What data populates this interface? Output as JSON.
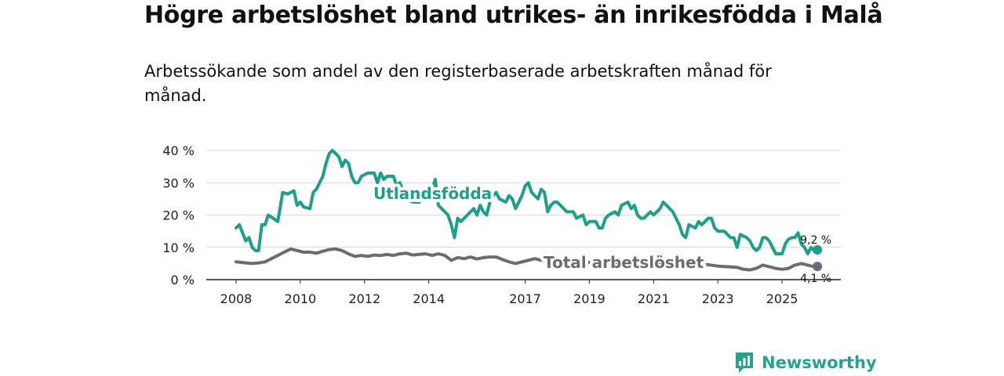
{
  "page": {
    "title": "Högre arbetslöshet bland utrikes- än inrikesfödda i Malå",
    "subtitle": "Arbetssökande som andel av den registerbaserade arbetskraften månad för månad."
  },
  "brand": {
    "name": "Newsworthy",
    "icon": "newsworthy-logo-icon",
    "color": "#2aa08e"
  },
  "chart_data": {
    "type": "line",
    "title": "Högre arbetslöshet bland utrikes- än inrikesfödda i Malå",
    "subtitle": "Arbetssökande som andel av den registerbaserade arbetskraften månad för månad.",
    "xlabel": "",
    "ylabel": "",
    "xlim": [
      2008.0,
      2026.0
    ],
    "ylim": [
      0,
      40
    ],
    "x_ticks": [
      {
        "value": 2008,
        "label": "2008"
      },
      {
        "value": 2010,
        "label": "2010"
      },
      {
        "value": 2012,
        "label": "2012"
      },
      {
        "value": 2014,
        "label": "2014"
      },
      {
        "value": 2017,
        "label": "2017"
      },
      {
        "value": 2019,
        "label": "2019"
      },
      {
        "value": 2021,
        "label": "2021"
      },
      {
        "value": 2023,
        "label": "2023"
      },
      {
        "value": 2025,
        "label": "2025"
      }
    ],
    "y_ticks": [
      {
        "value": 0,
        "label": "0 %"
      },
      {
        "value": 10,
        "label": "10 %"
      },
      {
        "value": 20,
        "label": "20 %"
      },
      {
        "value": 30,
        "label": "30 %"
      },
      {
        "value": 40,
        "label": "40 %"
      }
    ],
    "grid": true,
    "series": [
      {
        "name": "Utlandsfödda",
        "color": "#1f9e8a",
        "end_label": "9,2 %",
        "points": [
          [
            2008.0,
            16
          ],
          [
            2008.1,
            17
          ],
          [
            2008.3,
            12
          ],
          [
            2008.4,
            13
          ],
          [
            2008.5,
            10
          ],
          [
            2008.6,
            9
          ],
          [
            2008.7,
            9
          ],
          [
            2008.8,
            17
          ],
          [
            2008.9,
            17
          ],
          [
            2009.0,
            20
          ],
          [
            2009.15,
            19
          ],
          [
            2009.3,
            18
          ],
          [
            2009.45,
            27
          ],
          [
            2009.6,
            26.5
          ],
          [
            2009.8,
            27.5
          ],
          [
            2009.9,
            23
          ],
          [
            2010.0,
            24
          ],
          [
            2010.1,
            22.5
          ],
          [
            2010.3,
            22
          ],
          [
            2010.4,
            27
          ],
          [
            2010.5,
            28
          ],
          [
            2010.7,
            32
          ],
          [
            2010.8,
            36
          ],
          [
            2010.9,
            39
          ],
          [
            2011.0,
            40
          ],
          [
            2011.1,
            39
          ],
          [
            2011.2,
            38
          ],
          [
            2011.3,
            35
          ],
          [
            2011.4,
            37
          ],
          [
            2011.5,
            36
          ],
          [
            2011.6,
            32
          ],
          [
            2011.7,
            30
          ],
          [
            2011.8,
            30
          ],
          [
            2011.9,
            32
          ],
          [
            2012.1,
            33
          ],
          [
            2012.3,
            33
          ],
          [
            2012.4,
            30
          ],
          [
            2012.5,
            33
          ],
          [
            2012.6,
            31
          ],
          [
            2012.7,
            32
          ],
          [
            2012.9,
            32
          ],
          [
            2013.0,
            29
          ],
          [
            2013.1,
            30
          ],
          [
            2013.3,
            25
          ],
          [
            2013.5,
            24
          ],
          [
            2013.7,
            24
          ],
          [
            2013.9,
            27
          ],
          [
            2014.1,
            28
          ],
          [
            2014.2,
            31
          ],
          [
            2014.3,
            23
          ],
          [
            2014.5,
            21
          ],
          [
            2014.6,
            20
          ],
          [
            2014.7,
            17
          ],
          [
            2014.8,
            13
          ],
          [
            2014.9,
            19
          ],
          [
            2015.0,
            18
          ],
          [
            2015.2,
            20
          ],
          [
            2015.3,
            21
          ],
          [
            2015.4,
            22
          ],
          [
            2015.5,
            20
          ],
          [
            2015.6,
            23
          ],
          [
            2015.7,
            21
          ],
          [
            2015.8,
            20
          ],
          [
            2015.9,
            24
          ],
          [
            2016.0,
            26
          ],
          [
            2016.1,
            27
          ],
          [
            2016.2,
            25
          ],
          [
            2016.4,
            24
          ],
          [
            2016.5,
            26
          ],
          [
            2016.6,
            25
          ],
          [
            2016.7,
            22
          ],
          [
            2016.9,
            26
          ],
          [
            2017.0,
            29
          ],
          [
            2017.1,
            30
          ],
          [
            2017.2,
            27
          ],
          [
            2017.4,
            25
          ],
          [
            2017.5,
            28
          ],
          [
            2017.6,
            27
          ],
          [
            2017.7,
            21
          ],
          [
            2017.8,
            23
          ],
          [
            2017.9,
            24
          ],
          [
            2018.0,
            24
          ],
          [
            2018.1,
            23
          ],
          [
            2018.2,
            22
          ],
          [
            2018.3,
            21
          ],
          [
            2018.5,
            21
          ],
          [
            2018.6,
            19
          ],
          [
            2018.8,
            20
          ],
          [
            2018.9,
            17
          ],
          [
            2019.0,
            18
          ],
          [
            2019.2,
            18
          ],
          [
            2019.3,
            16
          ],
          [
            2019.4,
            16
          ],
          [
            2019.5,
            19
          ],
          [
            2019.6,
            20
          ],
          [
            2019.8,
            21
          ],
          [
            2019.9,
            20
          ],
          [
            2020.0,
            23
          ],
          [
            2020.2,
            24
          ],
          [
            2020.3,
            22
          ],
          [
            2020.4,
            23
          ],
          [
            2020.5,
            20
          ],
          [
            2020.6,
            19
          ],
          [
            2020.7,
            19
          ],
          [
            2020.8,
            20
          ],
          [
            2020.9,
            21
          ],
          [
            2021.0,
            20
          ],
          [
            2021.2,
            22
          ],
          [
            2021.3,
            24
          ],
          [
            2021.4,
            23
          ],
          [
            2021.5,
            22
          ],
          [
            2021.6,
            21
          ],
          [
            2021.7,
            19
          ],
          [
            2021.8,
            17
          ],
          [
            2021.9,
            14
          ],
          [
            2022.0,
            13
          ],
          [
            2022.1,
            17
          ],
          [
            2022.3,
            16
          ],
          [
            2022.4,
            18
          ],
          [
            2022.5,
            17
          ],
          [
            2022.6,
            18
          ],
          [
            2022.7,
            19
          ],
          [
            2022.8,
            19
          ],
          [
            2022.9,
            16
          ],
          [
            2023.0,
            15
          ],
          [
            2023.2,
            15
          ],
          [
            2023.3,
            14
          ],
          [
            2023.4,
            13
          ],
          [
            2023.5,
            13
          ],
          [
            2023.6,
            10
          ],
          [
            2023.7,
            14
          ],
          [
            2023.9,
            13
          ],
          [
            2024.0,
            12
          ],
          [
            2024.1,
            10
          ],
          [
            2024.2,
            9
          ],
          [
            2024.3,
            10
          ],
          [
            2024.4,
            13
          ],
          [
            2024.5,
            13
          ],
          [
            2024.6,
            12
          ],
          [
            2024.7,
            10
          ],
          [
            2024.8,
            8
          ],
          [
            2024.9,
            8
          ],
          [
            2025.0,
            8
          ],
          [
            2025.1,
            11
          ],
          [
            2025.2,
            12.5
          ],
          [
            2025.3,
            13
          ],
          [
            2025.4,
            13
          ],
          [
            2025.5,
            14.5
          ],
          [
            2025.6,
            11
          ],
          [
            2025.7,
            10
          ],
          [
            2025.8,
            8
          ],
          [
            2025.9,
            10
          ],
          [
            2026.0,
            9
          ],
          [
            2026.1,
            9.2
          ]
        ]
      },
      {
        "name": "Total arbetslöshet",
        "color": "#6b6b73",
        "end_label": "4,1 %",
        "points": [
          [
            2008.0,
            5.5
          ],
          [
            2008.3,
            5.2
          ],
          [
            2008.5,
            5
          ],
          [
            2008.7,
            5.2
          ],
          [
            2008.9,
            5.5
          ],
          [
            2009.1,
            6.5
          ],
          [
            2009.3,
            7.5
          ],
          [
            2009.5,
            8.5
          ],
          [
            2009.7,
            9.5
          ],
          [
            2009.9,
            9.0
          ],
          [
            2010.1,
            8.5
          ],
          [
            2010.3,
            8.5
          ],
          [
            2010.5,
            8.2
          ],
          [
            2010.7,
            8.8
          ],
          [
            2010.9,
            9.3
          ],
          [
            2011.1,
            9.5
          ],
          [
            2011.3,
            9.0
          ],
          [
            2011.5,
            8.0
          ],
          [
            2011.7,
            7.2
          ],
          [
            2011.9,
            7.5
          ],
          [
            2012.1,
            7.2
          ],
          [
            2012.3,
            7.6
          ],
          [
            2012.5,
            7.5
          ],
          [
            2012.7,
            7.8
          ],
          [
            2012.9,
            7.5
          ],
          [
            2013.1,
            8.0
          ],
          [
            2013.3,
            8.2
          ],
          [
            2013.5,
            7.6
          ],
          [
            2013.7,
            7.8
          ],
          [
            2013.9,
            8.0
          ],
          [
            2014.1,
            7.5
          ],
          [
            2014.3,
            8.0
          ],
          [
            2014.5,
            7.5
          ],
          [
            2014.7,
            6.0
          ],
          [
            2014.9,
            6.8
          ],
          [
            2015.1,
            6.5
          ],
          [
            2015.3,
            7.0
          ],
          [
            2015.5,
            6.4
          ],
          [
            2015.7,
            6.8
          ],
          [
            2015.9,
            7.0
          ],
          [
            2016.1,
            7.0
          ],
          [
            2016.3,
            6.2
          ],
          [
            2016.5,
            5.5
          ],
          [
            2016.7,
            5.0
          ],
          [
            2016.9,
            5.5
          ],
          [
            2017.1,
            6.0
          ],
          [
            2017.3,
            6.5
          ],
          [
            2017.5,
            6.0
          ],
          [
            2017.7,
            6.2
          ],
          [
            2017.9,
            6.0
          ],
          [
            2018.2,
            5.8
          ],
          [
            2018.5,
            5.5
          ],
          [
            2018.8,
            5.5
          ],
          [
            2019.1,
            5.2
          ],
          [
            2019.4,
            5.0
          ],
          [
            2019.7,
            5.0
          ],
          [
            2020.0,
            5.2
          ],
          [
            2020.3,
            5.5
          ],
          [
            2020.6,
            5.3
          ],
          [
            2020.9,
            5.0
          ],
          [
            2021.2,
            5.0
          ],
          [
            2021.5,
            4.8
          ],
          [
            2021.8,
            4.8
          ],
          [
            2022.1,
            4.8
          ],
          [
            2022.4,
            4.8
          ],
          [
            2022.7,
            4.6
          ],
          [
            2023.0,
            4.2
          ],
          [
            2023.3,
            4.0
          ],
          [
            2023.6,
            3.8
          ],
          [
            2023.8,
            3.2
          ],
          [
            2024.0,
            3.0
          ],
          [
            2024.2,
            3.5
          ],
          [
            2024.4,
            4.5
          ],
          [
            2024.6,
            4.0
          ],
          [
            2024.8,
            3.5
          ],
          [
            2025.0,
            3.2
          ],
          [
            2025.2,
            3.5
          ],
          [
            2025.4,
            4.5
          ],
          [
            2025.6,
            5.0
          ],
          [
            2025.8,
            4.5
          ],
          [
            2026.0,
            4.0
          ],
          [
            2026.1,
            4.1
          ]
        ]
      }
    ]
  }
}
